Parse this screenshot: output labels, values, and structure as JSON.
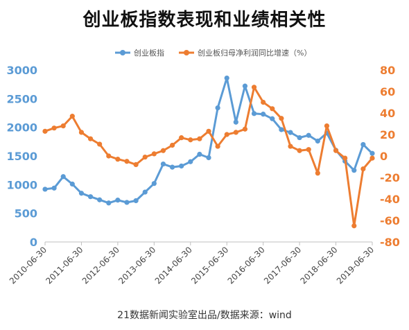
{
  "chart_data": {
    "type": "line",
    "title": "创业板指数表现和业绩相关性",
    "source": "21数据新闻实验室出品/数据来源：wind",
    "legend_position": "top",
    "grid": false,
    "series": [
      {
        "name": "创业板指",
        "axis": "left",
        "color": "#5B9BD5",
        "values": [
          920,
          940,
          1140,
          1010,
          850,
          790,
          735,
          680,
          730,
          690,
          720,
          870,
          1020,
          1360,
          1305,
          1325,
          1400,
          1530,
          1470,
          2340,
          2860,
          2090,
          2720,
          2240,
          2230,
          2150,
          1960,
          1910,
          1820,
          1860,
          1760,
          1900,
          1600,
          1410,
          1250,
          1700,
          1545
        ]
      },
      {
        "name": "创业板归母净利润同比增速（%）",
        "axis": "right",
        "color": "#ED7D31",
        "values": [
          23,
          26,
          28,
          37,
          22,
          16,
          11,
          0,
          -3,
          -5,
          -8,
          -1,
          2,
          5,
          10,
          17,
          15,
          16,
          23,
          9,
          20,
          22,
          25,
          64,
          50,
          44,
          35,
          9,
          5,
          6,
          -16,
          28,
          5,
          -2,
          -65,
          -12,
          -2
        ]
      }
    ],
    "x_tick_labels": [
      "2010-06-30",
      "2011-06-30",
      "2012-06-30",
      "2013-06-30",
      "2014-06-30",
      "2015-06-30",
      "2016-06-30",
      "2017-06-30",
      "2018-06-30",
      "2019-06-30"
    ],
    "y_left": {
      "min": 0,
      "max": 3000,
      "ticks": [
        0,
        500,
        1000,
        1500,
        2000,
        2500,
        3000
      ],
      "color": "#5B9BD5"
    },
    "y_right": {
      "min": -80,
      "max": 80,
      "ticks": [
        80,
        60,
        40,
        20,
        0,
        -20,
        -40,
        -60,
        -80
      ],
      "color": "#ED7D31"
    }
  }
}
